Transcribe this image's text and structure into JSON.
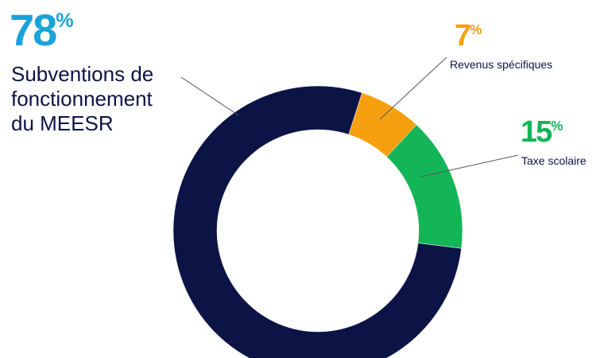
{
  "chart_data": {
    "type": "donut",
    "categories": [
      "Subventions de fonctionnement du MEESR",
      "Revenus spécifiques",
      "Taxe scolaire"
    ],
    "values": [
      78,
      7,
      15
    ],
    "unit": "%",
    "colors": [
      "#0c1446",
      "#f7a00f",
      "#13b557"
    ]
  }
}
